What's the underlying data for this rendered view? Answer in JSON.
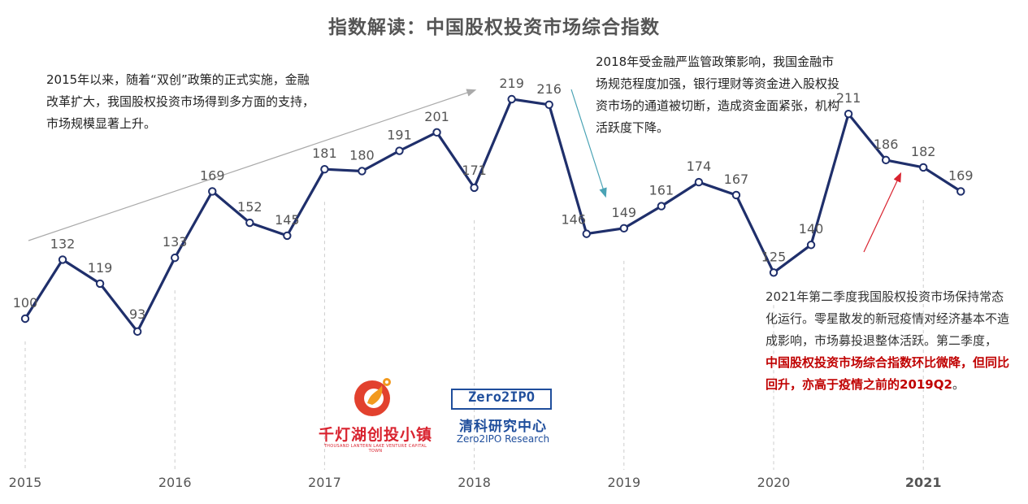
{
  "title": "指数解读：中国股权投资市场综合指数",
  "annotations": {
    "note_2015": "2015年以来，随着“双创”政策的正式实施，金融改革扩大，我国股权投资市场得到多方面的支持，市场规模显著上升。",
    "note_2018": "2018年受金融严监管政策影响，我国金融市场规范程度加强，银行理财等资金进入股权投资市场的通道被切断，造成资金面紧张，机构活跃度下降。",
    "note_2021_plain": "2021年第二季度我国股权投资市场保持常态化运行。零星散发的新冠疫情对经济基本不造成影响，市场募投退整体活跃。第二季度，",
    "note_2021_highlight": "中国股权投资市场综合指数环比微降，但同比回升，亦高于疫情之前的2019Q2",
    "note_2021_end": "。"
  },
  "logos": {
    "qiandenghu_cn": "千灯湖创投小镇",
    "qiandenghu_en": "THOUSAND LANTERN LAKE VENTURE CAPITAL TOWN",
    "zero2ipo_box": "Zero2IPO",
    "zero2ipo_cn": "清科研究中心",
    "zero2ipo_en": "Zero2IPO Research"
  },
  "colors": {
    "line": "#1f2f6b",
    "arrow_up_gray": "#aaaaaa",
    "arrow_teal": "#4aa3b5",
    "arrow_red": "#d9232f",
    "highlight_text": "#c00000"
  },
  "chart_data": {
    "type": "line",
    "title": "指数解读：中国股权投资市场综合指数",
    "x_tick_labels": [
      "2015",
      "2016",
      "2017",
      "2018",
      "2019",
      "2020",
      "2021"
    ],
    "x": [
      "2015Q1",
      "2015Q2",
      "2015Q3",
      "2015Q4",
      "2016Q1",
      "2016Q2",
      "2016Q3",
      "2016Q4",
      "2017Q1",
      "2017Q2",
      "2017Q3",
      "2017Q4",
      "2018Q1",
      "2018Q2",
      "2018Q3",
      "2018Q4",
      "2019Q1",
      "2019Q2",
      "2019Q3",
      "2019Q4",
      "2020Q1",
      "2020Q2",
      "2020Q3",
      "2020Q4",
      "2021Q1",
      "2021Q2"
    ],
    "series": [
      {
        "values": [
          100,
          132,
          119,
          93,
          133,
          169,
          152,
          145,
          181,
          180,
          191,
          201,
          171,
          219,
          216,
          146,
          149,
          161,
          174,
          167,
          125,
          140,
          211,
          186,
          182,
          169
        ]
      }
    ],
    "ylim": [
      60,
      240
    ],
    "grid": false,
    "legend": "none"
  }
}
